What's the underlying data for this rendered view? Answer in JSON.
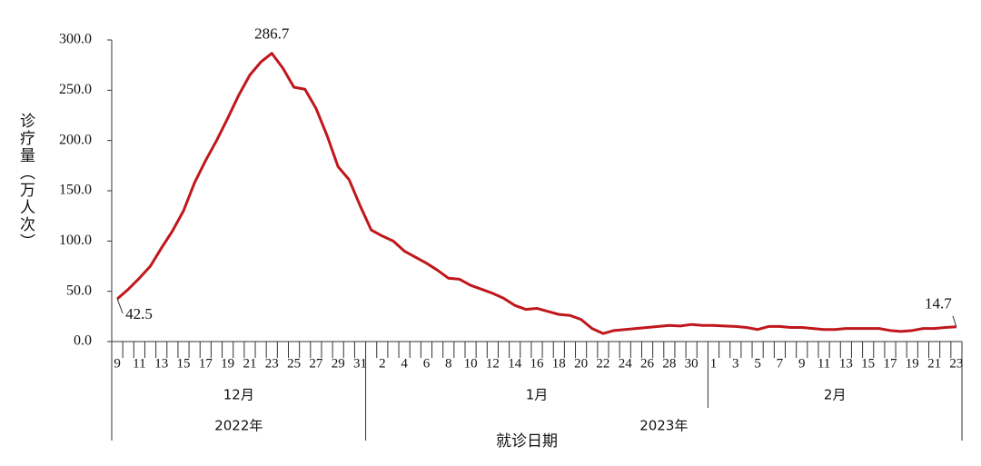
{
  "chart_data": {
    "type": "line",
    "y_label": "诊疗量（万人次）",
    "x_label": "就诊日期",
    "categories": [
      "9",
      null,
      "11",
      null,
      "13",
      null,
      "15",
      null,
      "17",
      null,
      "19",
      null,
      "21",
      null,
      "23",
      null,
      "25",
      null,
      "27",
      null,
      "29",
      null,
      "31",
      null,
      "2",
      null,
      "4",
      null,
      "6",
      null,
      "8",
      null,
      "10",
      null,
      "12",
      null,
      "14",
      null,
      "16",
      null,
      "18",
      null,
      "20",
      null,
      "22",
      null,
      "24",
      null,
      "26",
      null,
      "28",
      null,
      "30",
      null,
      "1",
      null,
      "3",
      null,
      "5",
      null,
      "7",
      null,
      "9",
      null,
      "11",
      null,
      "13",
      null,
      "15",
      null,
      "17",
      null,
      "19",
      null,
      "21",
      null,
      "23"
    ],
    "months": [
      {
        "label": "12月",
        "span": 23
      },
      {
        "label": "1月",
        "span": 31
      },
      {
        "label": "2月",
        "span": 23
      }
    ],
    "years": [
      {
        "label": "2022年",
        "span": 23
      },
      {
        "label": "2023年",
        "span": 54
      }
    ],
    "series": [
      {
        "color": "#c0171c",
        "values": [
          42.5,
          52,
          63,
          75,
          93,
          110,
          130,
          158,
          180,
          200,
          222,
          245,
          265,
          278,
          286.7,
          272,
          253,
          251,
          232,
          205,
          174,
          161,
          135,
          111,
          105,
          100,
          90,
          84,
          78,
          71,
          63,
          62,
          56,
          52,
          48,
          43,
          36,
          32,
          33,
          30,
          27,
          26,
          22,
          13,
          8,
          11,
          12,
          13,
          14,
          15,
          16,
          15.5,
          17,
          16,
          16,
          15.5,
          15,
          14,
          12,
          15,
          15,
          14,
          14,
          13,
          12,
          12,
          13,
          13,
          13,
          13,
          11,
          10,
          11,
          13,
          13,
          14,
          14.7
        ],
        "value_labels": [
          "42.5",
          null,
          null,
          null,
          null,
          null,
          null,
          null,
          null,
          null,
          null,
          null,
          null,
          null,
          "286.7",
          null,
          null,
          null,
          null,
          null,
          null,
          null,
          null,
          null,
          null,
          null,
          null,
          null,
          null,
          null,
          null,
          null,
          null,
          null,
          null,
          null,
          null,
          null,
          null,
          null,
          null,
          null,
          null,
          null,
          null,
          null,
          null,
          null,
          null,
          null,
          null,
          null,
          null,
          null,
          null,
          null,
          null,
          null,
          null,
          null,
          null,
          null,
          null,
          null,
          null,
          null,
          null,
          null,
          null,
          null,
          null,
          null,
          null,
          null,
          null,
          null,
          "14.7"
        ]
      }
    ],
    "ylim": [
      0,
      300
    ],
    "yticks": [
      {
        "value": 0,
        "label": "0.0"
      },
      {
        "value": 50,
        "label": "50.0"
      },
      {
        "value": 100,
        "label": "100.0"
      },
      {
        "value": 150,
        "label": "150.0"
      },
      {
        "value": 200,
        "label": "200.0"
      },
      {
        "value": 250,
        "label": "250.0"
      },
      {
        "value": 300,
        "label": "300.0"
      }
    ]
  }
}
